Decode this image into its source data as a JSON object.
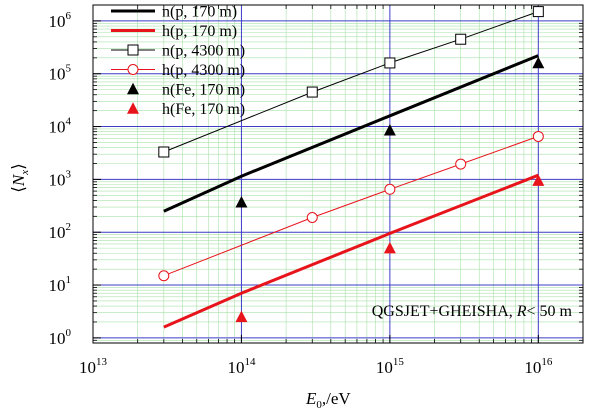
{
  "chart_data": {
    "type": "line",
    "x_scale": "log",
    "y_scale": "log",
    "xlim": [
      10000000000000.0,
      2e+16
    ],
    "ylim": [
      0.8,
      2000000.0
    ],
    "xlabel": {
      "main": "E",
      "sub": "0",
      "rest": ",/eV"
    },
    "ylabel": {
      "left": "⟨",
      "main": "N",
      "sub": "x",
      "right": "⟩"
    },
    "x_ticks": [
      {
        "value": 10000000000000.0,
        "base": "10",
        "exp": "13"
      },
      {
        "value": 100000000000000.0,
        "base": "10",
        "exp": "14"
      },
      {
        "value": 1000000000000000.0,
        "base": "10",
        "exp": "15"
      },
      {
        "value": 1e+16,
        "base": "10",
        "exp": "16"
      }
    ],
    "y_ticks": [
      {
        "value": 1,
        "base": "10",
        "exp": "0"
      },
      {
        "value": 10,
        "base": "10",
        "exp": "1"
      },
      {
        "value": 100,
        "base": "10",
        "exp": "2"
      },
      {
        "value": 1000,
        "base": "10",
        "exp": "3"
      },
      {
        "value": 10000,
        "base": "10",
        "exp": "4"
      },
      {
        "value": 100000,
        "base": "10",
        "exp": "5"
      },
      {
        "value": 1000000,
        "base": "10",
        "exp": "6"
      }
    ],
    "grid": true,
    "annotation": {
      "text": "QGSJET+GHEISHA, ",
      "italic": "R",
      "rest": "< 50 m"
    },
    "legend_position": "top-left",
    "series": [
      {
        "name": "n(p, 170 m)",
        "color": "#000000",
        "style": "thick",
        "marker": "none",
        "x": [
          30000000000000.0,
          100000000000000.0,
          1000000000000000.0,
          1e+16
        ],
        "y": [
          250,
          1150,
          16000,
          220000
        ]
      },
      {
        "name": "h(p, 170 m)",
        "color": "#e8141c",
        "style": "thick",
        "marker": "none",
        "x": [
          30000000000000.0,
          100000000000000.0,
          1000000000000000.0,
          1e+16
        ],
        "y": [
          1.6,
          7,
          95,
          1200
        ]
      },
      {
        "name": "n(p, 4300 m)",
        "color": "#000000",
        "style": "thin",
        "marker": "square",
        "x": [
          30000000000000.0,
          300000000000000.0,
          1000000000000000.0,
          3000000000000000.0,
          1e+16
        ],
        "y": [
          3300,
          45000,
          160000,
          450000,
          1500000
        ]
      },
      {
        "name": "h(p, 4300 m)",
        "color": "#e8141c",
        "style": "thin",
        "marker": "circle",
        "x": [
          30000000000000.0,
          300000000000000.0,
          1000000000000000.0,
          3000000000000000.0,
          1e+16
        ],
        "y": [
          15,
          190,
          650,
          1950,
          6500
        ]
      },
      {
        "name": "n(Fe, 170 m)",
        "color": "#000000",
        "style": "none",
        "marker": "triangle",
        "x": [
          100000000000000.0,
          1000000000000000.0,
          1e+16
        ],
        "y": [
          370,
          8500,
          160000
        ]
      },
      {
        "name": "h(Fe, 170 m)",
        "color": "#e8141c",
        "style": "none",
        "marker": "triangle",
        "x": [
          100000000000000.0,
          1000000000000000.0,
          1e+16
        ],
        "y": [
          2.5,
          50,
          950
        ]
      }
    ]
  }
}
